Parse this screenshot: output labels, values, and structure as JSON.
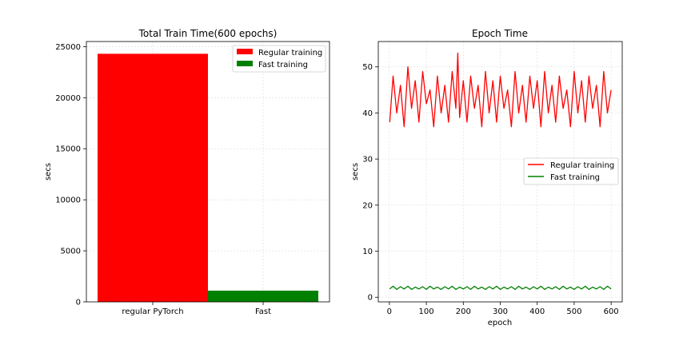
{
  "chart_data": [
    {
      "type": "bar",
      "title": "Total Train Time(600 epochs)",
      "xlabel": "",
      "ylabel": "secs",
      "categories": [
        "regular PyTorch",
        "Fast"
      ],
      "series": [
        {
          "name": "Regular training",
          "color": "#ff0000",
          "values": [
            24300,
            null
          ]
        },
        {
          "name": "Fast training",
          "color": "#008000",
          "values": [
            null,
            1100
          ]
        }
      ],
      "ylim": [
        0,
        25500
      ],
      "yticks": [
        0,
        5000,
        10000,
        15000,
        20000,
        25000
      ],
      "grid": true,
      "legend": "top-right"
    },
    {
      "type": "line",
      "title": "Epoch Time",
      "xlabel": "epoch",
      "ylabel": "secs",
      "xlim": [
        -30,
        630
      ],
      "ylim": [
        -1,
        55.5
      ],
      "xticks": [
        0,
        100,
        200,
        300,
        400,
        500,
        600
      ],
      "yticks": [
        0,
        10,
        20,
        30,
        40,
        50
      ],
      "grid": true,
      "legend": "center-right",
      "series": [
        {
          "name": "Regular training",
          "color": "#ff0000",
          "x": [
            1,
            10,
            20,
            30,
            40,
            50,
            60,
            70,
            80,
            90,
            100,
            110,
            120,
            130,
            140,
            150,
            160,
            170,
            180,
            185,
            190,
            200,
            210,
            220,
            230,
            240,
            250,
            260,
            270,
            280,
            290,
            300,
            310,
            320,
            330,
            340,
            350,
            360,
            370,
            380,
            390,
            400,
            410,
            420,
            430,
            440,
            450,
            460,
            470,
            480,
            490,
            500,
            510,
            520,
            530,
            540,
            550,
            560,
            570,
            580,
            590,
            600
          ],
          "y": [
            38,
            48,
            40,
            46,
            37,
            50,
            41,
            47,
            38,
            49,
            42,
            45,
            37,
            48,
            40,
            46,
            38,
            49,
            41,
            53,
            39,
            47,
            38,
            48,
            41,
            46,
            37,
            49,
            40,
            47,
            38,
            48,
            41,
            45,
            37,
            49,
            40,
            46,
            38,
            48,
            41,
            47,
            37,
            49,
            40,
            46,
            38,
            48,
            41,
            45,
            37,
            49,
            40,
            47,
            38,
            48,
            41,
            46,
            37,
            49,
            40,
            45
          ]
        },
        {
          "name": "Fast training",
          "color": "#008000",
          "x": [
            1,
            10,
            20,
            30,
            40,
            50,
            60,
            70,
            80,
            90,
            100,
            110,
            120,
            130,
            140,
            150,
            160,
            170,
            180,
            190,
            200,
            210,
            220,
            230,
            240,
            250,
            260,
            270,
            280,
            290,
            300,
            310,
            320,
            330,
            340,
            350,
            360,
            370,
            380,
            390,
            400,
            410,
            420,
            430,
            440,
            450,
            460,
            470,
            480,
            490,
            500,
            510,
            520,
            530,
            540,
            550,
            560,
            570,
            580,
            590,
            600
          ],
          "y": [
            1.8,
            2.4,
            1.7,
            2.3,
            1.8,
            2.4,
            1.7,
            2.2,
            1.8,
            2.3,
            1.7,
            2.4,
            1.8,
            2.2,
            1.7,
            2.3,
            1.8,
            2.4,
            1.7,
            2.2,
            1.8,
            2.3,
            1.7,
            2.4,
            1.8,
            2.2,
            1.7,
            2.3,
            1.8,
            2.4,
            1.7,
            2.2,
            1.8,
            2.3,
            1.7,
            2.4,
            1.8,
            2.2,
            1.7,
            2.3,
            1.8,
            2.4,
            1.7,
            2.2,
            1.8,
            2.3,
            1.7,
            2.4,
            1.8,
            2.2,
            1.7,
            2.3,
            1.8,
            2.4,
            1.7,
            2.2,
            1.8,
            2.3,
            1.7,
            2.4,
            1.8
          ]
        }
      ]
    }
  ]
}
